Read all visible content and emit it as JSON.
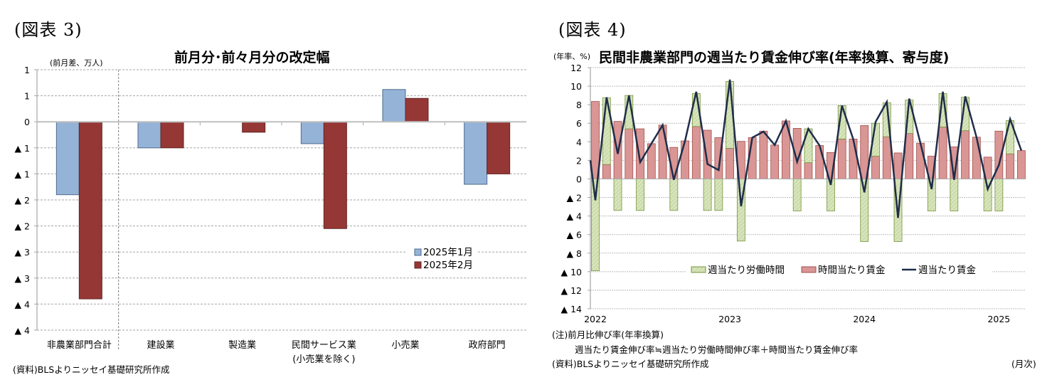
{
  "figures": {
    "left": {
      "label": "(図表 3)",
      "title": "前月分･前々月分の改定幅",
      "unit": "(前月差、万人)",
      "source": "(資料)BLSよりニッセイ基礎研究所作成"
    },
    "right": {
      "label": "(図表 4)",
      "title": "民間非農業部門の週当たり賃金伸び率(年率換算、寄与度)",
      "unit": "(年率、%)",
      "note1": "(注)前月比伸び率(年率換算)",
      "note2": "週当たり賃金伸び率≒週当たり労働時間伸び率＋時間当たり賃金伸び率",
      "source": "(資料)BLSよりニッセイ基礎研究所作成",
      "x_unit": "(月次)"
    }
  },
  "colors": {
    "jan_bar": "#95b3d7",
    "jan_border": "#4f6b8f",
    "feb_bar": "#953735",
    "feb_border": "#632523",
    "hours_bar": "#d7e4bd",
    "hours_border": "#77933c",
    "wage_bar": "#d99694",
    "wage_border": "#a0504e",
    "weekly_line": "#1f2d4a",
    "grid": "#a6a6a6",
    "axis": "#a6a6a6"
  },
  "chart_data": [
    {
      "type": "bar",
      "title": "前月分･前々月分の改定幅",
      "ylabel": "(前月差、万人)",
      "xlabel": "",
      "categories": [
        "非農業部門合計",
        "建設業",
        "製造業",
        "民間サービス業\n(小売業を除く)",
        "小売業",
        "政府部門"
      ],
      "category_lines": [
        [
          "非農業部門合計"
        ],
        [
          "建設業"
        ],
        [
          "製造業"
        ],
        [
          "民間サービス業",
          "(小売業を除く)"
        ],
        [
          "小売業"
        ],
        [
          "政府部門"
        ]
      ],
      "series": [
        {
          "name": "2025年1月",
          "values": [
            -1.4,
            -0.5,
            0.0,
            -0.42,
            0.62,
            -1.2
          ]
        },
        {
          "name": "2025年2月",
          "values": [
            -3.4,
            -0.5,
            -0.2,
            -2.05,
            0.45,
            -1.0
          ]
        }
      ],
      "ylim": [
        -4,
        1
      ],
      "yticks": [
        1,
        0.5,
        0,
        -0.5,
        -1,
        -1.5,
        -2,
        -2.5,
        -3,
        -3.5,
        -4
      ],
      "ytick_labels": [
        "1",
        "1",
        "0",
        "▲ 1",
        "▲ 1",
        "▲ 2",
        "▲ 2",
        "▲ 3",
        "▲ 3",
        "▲ 4",
        "▲ 4"
      ],
      "grid": true,
      "legend_position": "lower right inside",
      "divider_after_category": 0
    },
    {
      "type": "bar+line",
      "title": "民間非農業部門の週当たり賃金伸び率(年率換算、寄与度)",
      "ylabel": "(年率、%)",
      "xlabel": "(月次)",
      "x": [
        "2022-01",
        "2022-02",
        "2022-03",
        "2022-04",
        "2022-05",
        "2022-06",
        "2022-07",
        "2022-08",
        "2022-09",
        "2022-10",
        "2022-11",
        "2022-12",
        "2023-01",
        "2023-02",
        "2023-03",
        "2023-04",
        "2023-05",
        "2023-06",
        "2023-07",
        "2023-08",
        "2023-09",
        "2023-10",
        "2023-11",
        "2023-12",
        "2024-01",
        "2024-02",
        "2024-03",
        "2024-04",
        "2024-05",
        "2024-06",
        "2024-07",
        "2024-08",
        "2024-09",
        "2024-10",
        "2024-11",
        "2024-12",
        "2025-01",
        "2025-02",
        "2025-03"
      ],
      "xtick_labels": [
        {
          "label": "2022",
          "index": 0
        },
        {
          "label": "2023",
          "index": 12
        },
        {
          "label": "2024",
          "index": 24
        },
        {
          "label": "2025",
          "index": 36
        }
      ],
      "series": [
        {
          "name": "週当たり労働時間",
          "type": "stacked-bar",
          "values": [
            -9.9,
            7.2,
            -3.4,
            3.6,
            -3.4,
            0,
            0,
            -3.4,
            0,
            3.55,
            -3.4,
            -3.4,
            7.2,
            -6.7,
            0,
            0,
            0,
            0,
            -3.45,
            3.65,
            0,
            -3.45,
            3.6,
            0,
            -6.75,
            3.55,
            3.65,
            -6.75,
            3.6,
            0,
            -3.45,
            3.6,
            -3.45,
            3.6,
            0,
            -3.45,
            -3.45,
            3.6,
            0
          ]
        },
        {
          "name": "時間当たり賃金",
          "type": "stacked-bar",
          "values": [
            8.35,
            1.55,
            6.2,
            5.4,
            5.4,
            3.8,
            5.8,
            3.4,
            4.1,
            5.65,
            5.25,
            4.45,
            3.3,
            4.05,
            4.45,
            5.15,
            3.65,
            6.25,
            5.45,
            1.75,
            3.6,
            2.85,
            4.3,
            4.3,
            5.75,
            2.45,
            4.55,
            2.8,
            4.9,
            3.85,
            2.45,
            5.6,
            3.45,
            5.2,
            4.5,
            2.35,
            5.15,
            2.7,
            3.05
          ]
        },
        {
          "name": "週当たり賃金",
          "type": "line",
          "values": [
            -2.3,
            8.8,
            2.7,
            9.0,
            1.8,
            3.8,
            5.8,
            -0.1,
            4.1,
            9.4,
            1.6,
            0.95,
            10.7,
            -2.95,
            4.45,
            5.1,
            3.65,
            6.25,
            1.85,
            5.4,
            3.6,
            -0.65,
            7.9,
            4.3,
            -1.45,
            6.15,
            8.3,
            -4.2,
            8.65,
            3.85,
            -1.1,
            9.4,
            -0.1,
            8.9,
            4.5,
            -1.1,
            1.5,
            6.45,
            3.05
          ],
          "line_start_at_axis": 2.0
        }
      ],
      "ylim": [
        -14,
        12
      ],
      "yticks": [
        12,
        10,
        8,
        6,
        4,
        2,
        0,
        -2,
        -4,
        -6,
        -8,
        -10,
        -12,
        -14
      ],
      "ytick_labels": [
        "12",
        "10",
        "8",
        "6",
        "4",
        "2",
        "0",
        "▲ 2",
        "▲ 4",
        "▲ 6",
        "▲ 8",
        "▲ 10",
        "▲ 12",
        "▲ 14"
      ],
      "grid": true,
      "legend_position": "bottom inside"
    }
  ]
}
